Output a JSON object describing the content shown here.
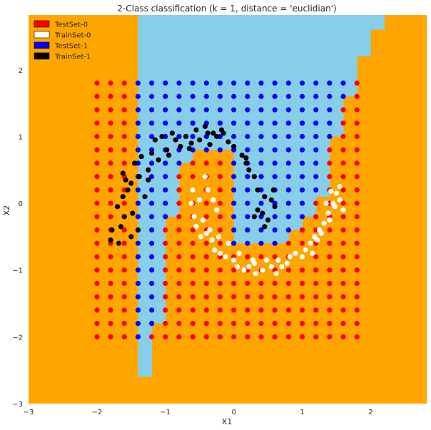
{
  "chart_data": {
    "type": "scatter",
    "title": "2-Class classification (k = 1, distance = 'euclidian')",
    "xlabel": "X1",
    "ylabel": "X2",
    "xlim": [
      -3,
      2.82
    ],
    "ylim": [
      -3,
      2.82
    ],
    "xticks": [
      -3,
      -2,
      -1,
      0,
      1,
      2
    ],
    "yticks": [
      -3,
      -2,
      -1,
      0,
      1,
      2
    ],
    "tick_labels_x": [
      "−3",
      "−2",
      "−1",
      "0",
      "1",
      "2"
    ],
    "tick_labels_y": [
      "−3",
      "−2",
      "−1",
      "0",
      "1",
      "2"
    ],
    "grid": false,
    "legend_position": "top-left",
    "colors": {
      "region_class0": "#ffa500",
      "region_class1": "#87ceeb",
      "test0": "#ff0000",
      "test1": "#0000ff",
      "train0": "#ffffff",
      "train1": "#000000"
    },
    "legend": [
      {
        "label": "TestSet-0",
        "color": "#ff0000"
      },
      {
        "label": "TrainSet-0",
        "color": "#ffffff"
      },
      {
        "label": "TestSet-1",
        "color": "#0000ff"
      },
      {
        "label": "TrainSet-1",
        "color": "#000000"
      }
    ],
    "decision_regions": {
      "class1_vertical_strips_x_to_ymin": [
        [
          -3.0,
          -1.4,
          3.0
        ],
        [
          -1.4,
          -1.2,
          -2.6
        ],
        [
          -1.2,
          -1.0,
          -1.8
        ],
        [
          -1.0,
          -0.8,
          -0.2
        ],
        [
          -0.8,
          -0.6,
          0.6
        ],
        [
          -0.6,
          -0.3,
          0.8
        ],
        [
          -0.3,
          0.0,
          0.8
        ],
        [
          0.0,
          0.2,
          -0.6
        ],
        [
          0.2,
          0.8,
          -0.6
        ],
        [
          0.8,
          1.0,
          -0.4
        ],
        [
          1.0,
          1.2,
          -0.2
        ],
        [
          1.2,
          1.4,
          0.1
        ],
        [
          1.4,
          1.6,
          1.0
        ],
        [
          1.6,
          1.8,
          1.6
        ],
        [
          1.8,
          2.0,
          2.2
        ],
        [
          2.0,
          2.2,
          2.6
        ],
        [
          2.2,
          2.82,
          3.0
        ]
      ]
    },
    "test_grid": {
      "x_values": [
        -2.0,
        -1.8,
        -1.6,
        -1.4,
        -1.2,
        -1.0,
        -0.8,
        -0.6,
        -0.4,
        -0.2,
        0.0,
        0.2,
        0.4,
        0.6,
        0.8,
        1.0,
        1.2,
        1.4,
        1.6,
        1.8
      ],
      "y_values": [
        -2.0,
        -1.8,
        -1.6,
        -1.4,
        -1.2,
        -1.0,
        -0.8,
        -0.6,
        -0.4,
        -0.2,
        0.0,
        0.2,
        0.4,
        0.6,
        0.8,
        1.0,
        1.2,
        1.4,
        1.6,
        1.8
      ],
      "note_class": "predicted class per decision region"
    },
    "series": [
      {
        "name": "TrainSet-1",
        "marker_color": "#000000",
        "points": [
          [
            -1.65,
            -0.35
          ],
          [
            -1.6,
            -0.2
          ],
          [
            -1.7,
            -0.05
          ],
          [
            -1.62,
            0.1
          ],
          [
            -1.55,
            0.2
          ],
          [
            -1.62,
            0.45
          ],
          [
            -1.5,
            0.3
          ],
          [
            -1.45,
            0.6
          ],
          [
            -1.38,
            0.4
          ],
          [
            -1.35,
            0.7
          ],
          [
            -1.25,
            0.5
          ],
          [
            -1.2,
            0.75
          ],
          [
            -1.15,
            0.95
          ],
          [
            -1.05,
            1.0
          ],
          [
            -0.98,
            0.8
          ],
          [
            -0.9,
            1.05
          ],
          [
            -0.78,
            0.85
          ],
          [
            -0.7,
            1.0
          ],
          [
            -0.62,
            0.9
          ],
          [
            -0.55,
            1.1
          ],
          [
            -0.5,
            0.95
          ],
          [
            -0.42,
            1.15
          ],
          [
            -0.38,
            1.05
          ],
          [
            -0.3,
            1.05
          ],
          [
            -0.25,
            1.0
          ],
          [
            -0.18,
            1.1
          ],
          [
            -0.08,
            0.92
          ],
          [
            0.0,
            0.85
          ],
          [
            0.12,
            0.72
          ],
          [
            0.18,
            0.68
          ],
          [
            0.22,
            0.5
          ],
          [
            0.3,
            0.4
          ],
          [
            0.35,
            0.2
          ],
          [
            0.45,
            0.1
          ],
          [
            0.42,
            -0.15
          ],
          [
            0.35,
            -0.1
          ],
          [
            0.5,
            -0.25
          ],
          [
            0.55,
            0.05
          ],
          [
            0.6,
            -0.05
          ],
          [
            0.58,
            0.2
          ],
          [
            0.45,
            -0.35
          ],
          [
            0.3,
            -0.2
          ],
          [
            -1.8,
            -0.55
          ],
          [
            -1.78,
            -0.4
          ],
          [
            -1.68,
            -0.6
          ],
          [
            -1.5,
            -0.5
          ],
          [
            -1.4,
            -0.4
          ],
          [
            -1.48,
            -0.15
          ],
          [
            -1.58,
            0.35
          ],
          [
            -1.3,
            0.1
          ],
          [
            -1.25,
            0.35
          ],
          [
            -1.1,
            0.65
          ],
          [
            -0.85,
            0.95
          ],
          [
            -0.95,
            0.72
          ],
          [
            -0.65,
            0.82
          ],
          [
            -0.35,
            0.88
          ],
          [
            -0.15,
            1.05
          ],
          [
            0.18,
            0.6
          ]
        ]
      },
      {
        "name": "TrainSet-0",
        "marker_color": "#ffffff",
        "points": [
          [
            -0.6,
            0.2
          ],
          [
            -0.62,
            0.0
          ],
          [
            -0.58,
            -0.2
          ],
          [
            -0.55,
            -0.35
          ],
          [
            -0.48,
            -0.5
          ],
          [
            -0.4,
            -0.45
          ],
          [
            -0.32,
            -0.55
          ],
          [
            -0.28,
            -0.7
          ],
          [
            -0.2,
            -0.75
          ],
          [
            -0.12,
            -0.8
          ],
          [
            -0.08,
            -0.6
          ],
          [
            0.0,
            -0.85
          ],
          [
            0.08,
            -0.75
          ],
          [
            0.15,
            -1.0
          ],
          [
            0.22,
            -0.95
          ],
          [
            0.28,
            -0.85
          ],
          [
            0.32,
            -1.05
          ],
          [
            0.42,
            -1.0
          ],
          [
            0.48,
            -0.85
          ],
          [
            0.55,
            -0.95
          ],
          [
            0.62,
            -1.05
          ],
          [
            0.7,
            -0.95
          ],
          [
            0.78,
            -0.9
          ],
          [
            0.82,
            -0.8
          ],
          [
            0.9,
            -0.75
          ],
          [
            1.0,
            -0.8
          ],
          [
            1.05,
            -0.7
          ],
          [
            1.12,
            -0.6
          ],
          [
            1.18,
            -0.5
          ],
          [
            1.25,
            -0.4
          ],
          [
            1.32,
            -0.3
          ],
          [
            1.38,
            -0.15
          ],
          [
            1.45,
            0.0
          ],
          [
            1.5,
            0.15
          ],
          [
            1.55,
            0.05
          ],
          [
            1.42,
            0.18
          ],
          [
            1.48,
            -0.05
          ],
          [
            1.35,
            0.0
          ],
          [
            1.6,
            -0.1
          ],
          [
            1.55,
            0.25
          ],
          [
            -0.42,
            0.4
          ],
          [
            -0.38,
            0.2
          ],
          [
            -0.3,
            0.05
          ],
          [
            -0.25,
            -0.1
          ],
          [
            -0.45,
            -0.25
          ],
          [
            -0.5,
            0.05
          ],
          [
            -0.35,
            -0.4
          ],
          [
            -0.22,
            -0.5
          ],
          [
            0.05,
            -0.95
          ],
          [
            0.3,
            -0.9
          ],
          [
            0.65,
            -0.85
          ],
          [
            1.15,
            -0.75
          ],
          [
            1.22,
            -0.55
          ],
          [
            1.28,
            -0.45
          ],
          [
            1.4,
            -0.25
          ]
        ]
      }
    ]
  }
}
